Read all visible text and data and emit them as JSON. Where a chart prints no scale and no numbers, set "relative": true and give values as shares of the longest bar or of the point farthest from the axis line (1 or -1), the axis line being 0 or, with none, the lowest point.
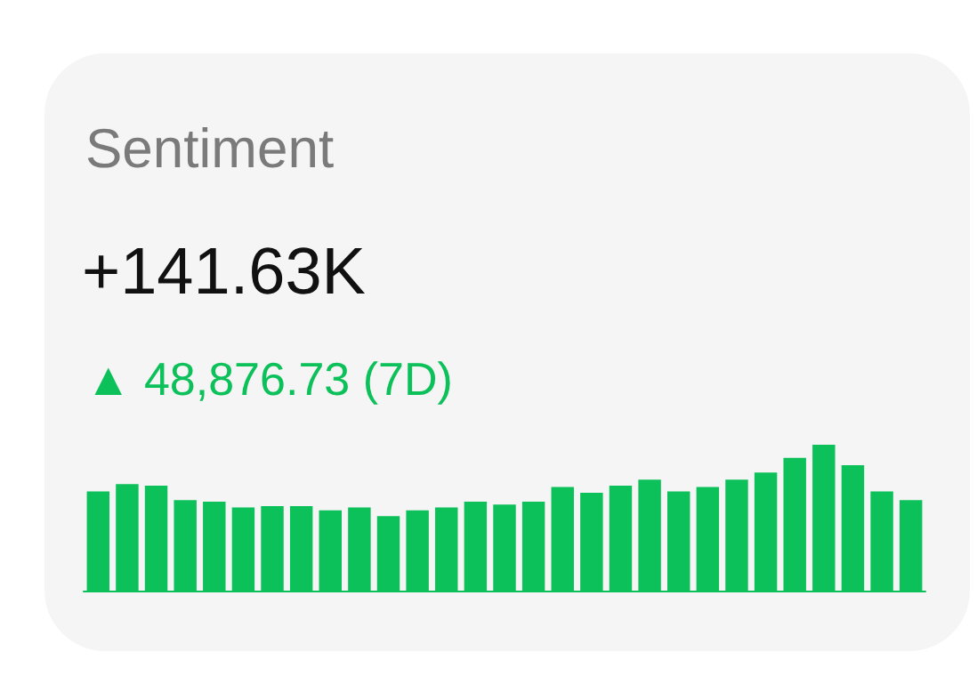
{
  "chart_data": {
    "type": "bar",
    "title": "Sentiment",
    "subtitle": "+141.63K",
    "annotations": [
      "▲ 48,876.73 (7D)"
    ],
    "relative": true,
    "categories": [
      null,
      null,
      null,
      null,
      null,
      null,
      null,
      null,
      null,
      null,
      null,
      null,
      null,
      null,
      null,
      null,
      null,
      null,
      null,
      null,
      null,
      null,
      null,
      null,
      null,
      null,
      null,
      null,
      null
    ],
    "series": [
      {
        "color": "#0cc05a",
        "values": [
          0.68,
          0.73,
          0.72,
          0.62,
          0.61,
          0.57,
          0.58,
          0.58,
          0.55,
          0.57,
          0.51,
          0.55,
          0.57,
          0.61,
          0.59,
          0.61,
          0.71,
          0.67,
          0.72,
          0.76,
          0.68,
          0.71,
          0.76,
          0.81,
          0.91,
          1,
          0.86,
          0.68,
          0.62
        ]
      }
    ]
  }
}
